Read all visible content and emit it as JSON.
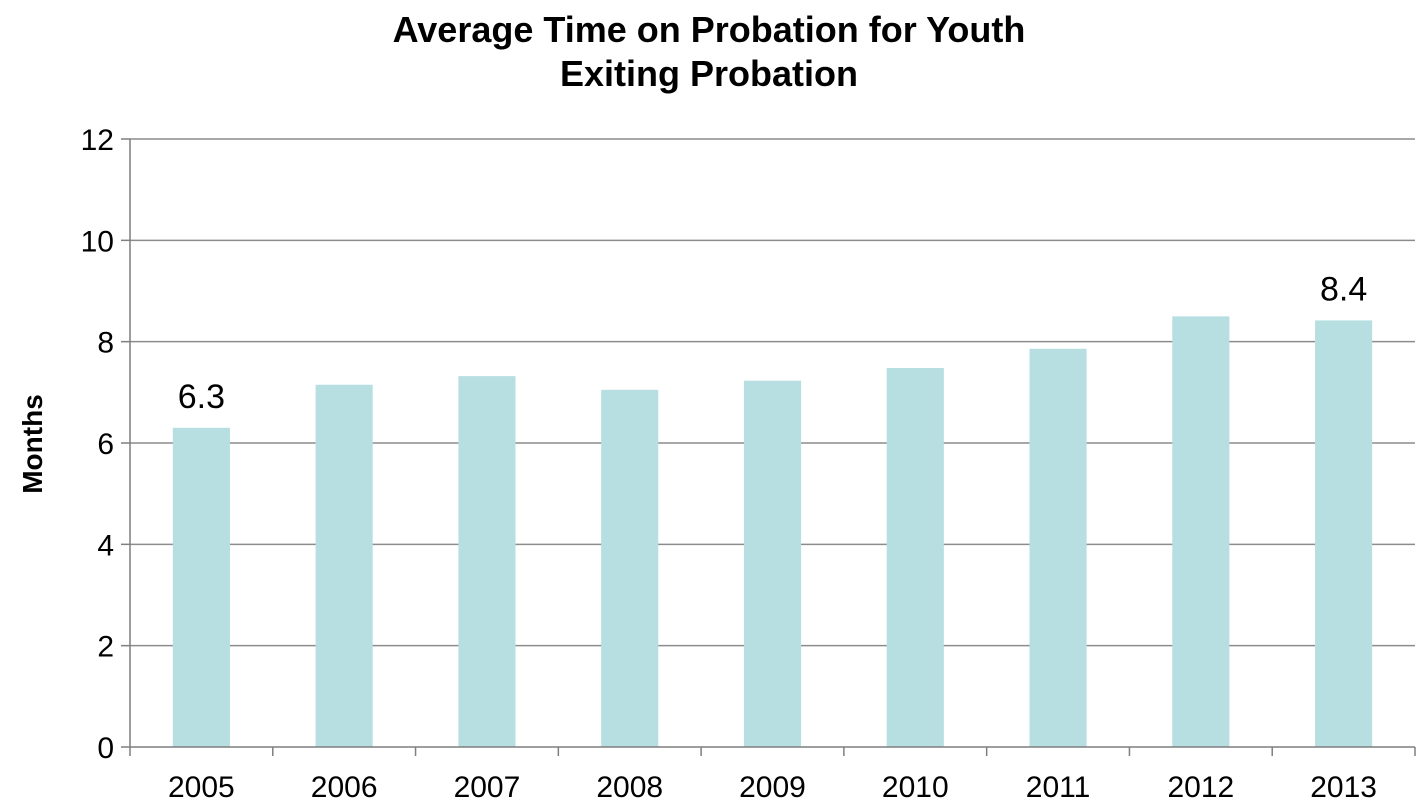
{
  "chart_data": {
    "type": "bar",
    "title_lines": [
      "Average Time on Probation for Youth",
      "Exiting Probation"
    ],
    "xlabel": "",
    "ylabel": "Months",
    "categories": [
      "2005",
      "2006",
      "2007",
      "2008",
      "2009",
      "2010",
      "2011",
      "2012",
      "2013"
    ],
    "values": [
      6.3,
      7.15,
      7.32,
      7.05,
      7.23,
      7.48,
      7.86,
      8.5,
      8.42
    ],
    "data_labels": [
      "6.3",
      "",
      "",
      "",
      "",
      "",
      "",
      "",
      "8.4"
    ],
    "ylim": [
      0,
      12
    ],
    "yticks": [
      0,
      2,
      4,
      6,
      8,
      10,
      12
    ],
    "grid": true,
    "legend": "none",
    "colors": {
      "bar": "#b7dfe2",
      "grid": "#8c8c8c",
      "axis": "#7f7f7f"
    }
  }
}
